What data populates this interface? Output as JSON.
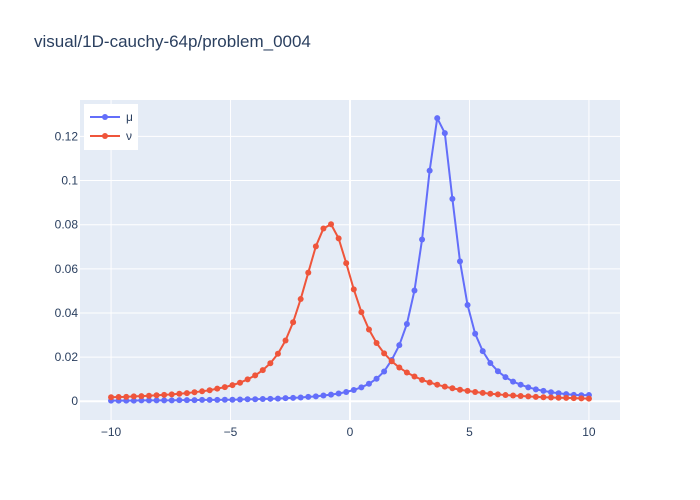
{
  "chart_data": {
    "type": "line",
    "title": "visual/1D-cauchy-64p/problem_0004",
    "xlabel": "",
    "ylabel": "",
    "xlim": [
      -11.3,
      11.3
    ],
    "ylim": [
      -0.0085,
      0.1365
    ],
    "x_ticks": [
      {
        "value": -10,
        "label": "−10"
      },
      {
        "value": -5,
        "label": "−5"
      },
      {
        "value": 0,
        "label": "0"
      },
      {
        "value": 5,
        "label": "5"
      },
      {
        "value": 10,
        "label": "10"
      }
    ],
    "y_ticks": [
      {
        "value": 0,
        "label": "0"
      },
      {
        "value": 0.02,
        "label": "0.02"
      },
      {
        "value": 0.04,
        "label": "0.04"
      },
      {
        "value": 0.06,
        "label": "0.06"
      },
      {
        "value": 0.08,
        "label": "0.08"
      },
      {
        "value": 0.1,
        "label": "0.1"
      },
      {
        "value": 0.12,
        "label": "0.12"
      }
    ],
    "grid": true,
    "legend_position": "top-left",
    "colors": {
      "plot_bg": "#e5ecf6",
      "grid": "#ffffff",
      "mu": "#636efa",
      "nu": "#ef553b"
    },
    "x": [
      -10,
      -9.6825,
      -9.3651,
      -9.0476,
      -8.7302,
      -8.4127,
      -8.0952,
      -7.7778,
      -7.4603,
      -7.1429,
      -6.8254,
      -6.5079,
      -6.1905,
      -5.873,
      -5.5556,
      -5.2381,
      -4.9206,
      -4.6032,
      -4.2857,
      -3.9683,
      -3.6508,
      -3.3333,
      -3.0159,
      -2.6984,
      -2.381,
      -2.0635,
      -1.746,
      -1.4286,
      -1.1111,
      -0.7937,
      -0.4762,
      -0.1587,
      0.1587,
      0.4762,
      0.7937,
      1.1111,
      1.4286,
      1.746,
      2.0635,
      2.381,
      2.6984,
      3.0159,
      3.3333,
      3.6508,
      3.9683,
      4.2857,
      4.6032,
      4.9206,
      5.2381,
      5.5556,
      5.873,
      6.1905,
      6.5079,
      6.8254,
      7.1429,
      7.4603,
      7.7778,
      8.0952,
      8.4127,
      8.7302,
      9.0476,
      9.3651,
      9.6825,
      10
    ],
    "series": [
      {
        "name": "μ",
        "values": [
          0.0003,
          0.0003,
          0.0003,
          0.0003,
          0.0004,
          0.0004,
          0.0004,
          0.0004,
          0.0004,
          0.0005,
          0.0005,
          0.0005,
          0.0006,
          0.0006,
          0.0006,
          0.0007,
          0.0007,
          0.0008,
          0.0009,
          0.0009,
          0.001,
          0.0011,
          0.0012,
          0.0014,
          0.0015,
          0.0017,
          0.002,
          0.0022,
          0.0026,
          0.003,
          0.0035,
          0.0042,
          0.0051,
          0.0063,
          0.0079,
          0.0102,
          0.0135,
          0.0187,
          0.0254,
          0.035,
          0.0502,
          0.0733,
          0.1045,
          0.1283,
          0.1215,
          0.0917,
          0.0634,
          0.0436,
          0.0306,
          0.0227,
          0.0173,
          0.0136,
          0.0109,
          0.0089,
          0.0075,
          0.0063,
          0.0054,
          0.0047,
          0.0041,
          0.0036,
          0.0032,
          0.0029,
          0.0027,
          0.0028
        ]
      },
      {
        "name": "ν",
        "values": [
          0.0018,
          0.0019,
          0.002,
          0.0022,
          0.0023,
          0.0025,
          0.0027,
          0.0029,
          0.0031,
          0.0034,
          0.0037,
          0.0041,
          0.0045,
          0.005,
          0.0057,
          0.0064,
          0.0073,
          0.0084,
          0.0099,
          0.0117,
          0.0141,
          0.0172,
          0.0215,
          0.0275,
          0.0358,
          0.0463,
          0.0583,
          0.0702,
          0.0783,
          0.0802,
          0.0738,
          0.0626,
          0.0507,
          0.0404,
          0.0325,
          0.0264,
          0.0217,
          0.0181,
          0.0153,
          0.013,
          0.0112,
          0.0097,
          0.0085,
          0.0075,
          0.0066,
          0.0059,
          0.0052,
          0.0047,
          0.0042,
          0.0038,
          0.0034,
          0.0031,
          0.0028,
          0.0026,
          0.0024,
          0.0022,
          0.002,
          0.0018,
          0.0017,
          0.0016,
          0.0015,
          0.0014,
          0.0013,
          0.0012
        ]
      }
    ]
  }
}
